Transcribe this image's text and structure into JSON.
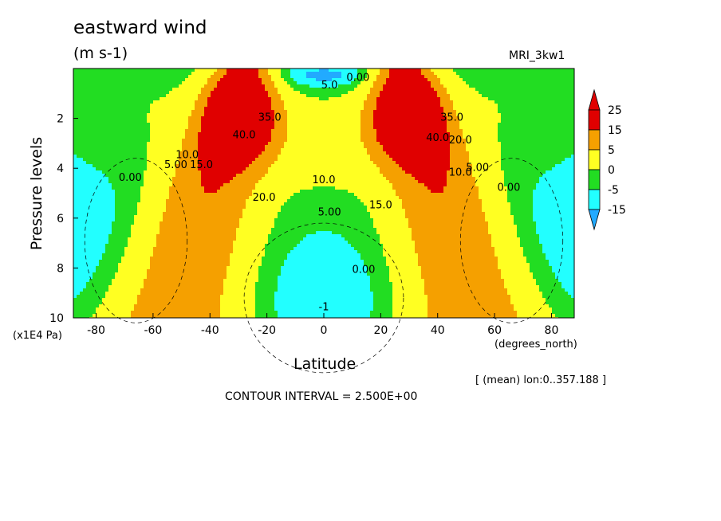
{
  "chart_data": {
    "type": "contour",
    "title": "eastward wind",
    "units": "(m s-1)",
    "model": "MRI_3kw1",
    "xlabel": "Latitude",
    "x_units": "(degrees_north)",
    "ylabel": "Pressure levels",
    "y_units": "(x1E4 Pa)",
    "region_note": "[ (mean) lon:0..357.188 ]",
    "contour_interval": "CONTOUR INTERVAL = 2.500E+00",
    "xlim": [
      -88,
      88
    ],
    "ylim": [
      0,
      10
    ],
    "y_reversed": true,
    "x_ticks": [
      "-80",
      "-60",
      "-40",
      "-20",
      "0",
      "20",
      "40",
      "60",
      "80"
    ],
    "y_ticks": [
      "2",
      "4",
      "6",
      "8",
      "10"
    ],
    "colorbar": {
      "labels": [
        "25",
        "15",
        "5",
        "0",
        "-5",
        "-15"
      ],
      "colors": [
        "#e00000",
        "#f5a000",
        "#ffff22",
        "#22dd22",
        "#22ffff",
        "#22aaff"
      ]
    },
    "contour_labels": [
      {
        "text": "40.0",
        "x": -28,
        "y": 2.8
      },
      {
        "text": "35.0",
        "x": -19,
        "y": 2.1
      },
      {
        "text": "40.0",
        "x": 40,
        "y": 2.9
      },
      {
        "text": "35.0",
        "x": 45,
        "y": 2.1
      },
      {
        "text": "20.0",
        "x": 48,
        "y": 3.0
      },
      {
        "text": "10.0",
        "x": -48,
        "y": 3.6
      },
      {
        "text": "15.0",
        "x": -43,
        "y": 4.0
      },
      {
        "text": "5.00",
        "x": -52,
        "y": 4.0
      },
      {
        "text": "0.00",
        "x": -68,
        "y": 4.5
      },
      {
        "text": "10.0",
        "x": 0,
        "y": 4.6
      },
      {
        "text": "5.00",
        "x": 2,
        "y": 5.9
      },
      {
        "text": "20.0",
        "x": -21,
        "y": 5.3
      },
      {
        "text": "15.0",
        "x": 20,
        "y": 5.6
      },
      {
        "text": "10.0",
        "x": 48,
        "y": 4.3
      },
      {
        "text": "5.00",
        "x": 54,
        "y": 4.1
      },
      {
        "text": "0.00",
        "x": 65,
        "y": 4.9
      },
      {
        "text": "0.00",
        "x": 14,
        "y": 8.2
      },
      {
        "text": "5.0",
        "x": 2,
        "y": 0.8
      },
      {
        "text": "0.00",
        "x": 12,
        "y": 0.5
      },
      {
        "text": "-1",
        "x": 0,
        "y": 9.7
      }
    ]
  }
}
